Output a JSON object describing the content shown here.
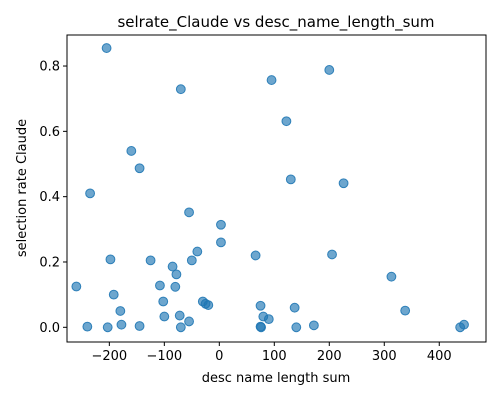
{
  "chart_data": {
    "type": "scatter",
    "title": "selrate_Claude vs desc_name_length_sum",
    "xlabel": "desc name length sum",
    "ylabel": "selection rate Claude",
    "xlim": [
      -277,
      485
    ],
    "ylim": [
      -0.045,
      0.895
    ],
    "xticks": [
      -200,
      -100,
      0,
      100,
      200,
      300,
      400
    ],
    "xtick_labels": [
      "−200",
      "−100",
      "0",
      "100",
      "200",
      "300",
      "400"
    ],
    "yticks": [
      0.0,
      0.2,
      0.4,
      0.6,
      0.8
    ],
    "ytick_labels": [
      "0.0",
      "0.2",
      "0.4",
      "0.6",
      "0.8"
    ],
    "grid": false,
    "legend": "none",
    "marker_color": "#1f77b4",
    "points": [
      {
        "x": -205,
        "y": 0.855
      },
      {
        "x": -70,
        "y": 0.729
      },
      {
        "x": 95,
        "y": 0.757
      },
      {
        "x": 200,
        "y": 0.788
      },
      {
        "x": 122,
        "y": 0.631
      },
      {
        "x": -160,
        "y": 0.54
      },
      {
        "x": -145,
        "y": 0.487
      },
      {
        "x": 130,
        "y": 0.453
      },
      {
        "x": 226,
        "y": 0.441
      },
      {
        "x": -235,
        "y": 0.41
      },
      {
        "x": -55,
        "y": 0.352
      },
      {
        "x": 3,
        "y": 0.314
      },
      {
        "x": 3,
        "y": 0.26
      },
      {
        "x": -40,
        "y": 0.232
      },
      {
        "x": 66,
        "y": 0.22
      },
      {
        "x": 205,
        "y": 0.223
      },
      {
        "x": -198,
        "y": 0.208
      },
      {
        "x": -125,
        "y": 0.205
      },
      {
        "x": -50,
        "y": 0.205
      },
      {
        "x": -85,
        "y": 0.186
      },
      {
        "x": -78,
        "y": 0.162
      },
      {
        "x": 313,
        "y": 0.155
      },
      {
        "x": -260,
        "y": 0.125
      },
      {
        "x": -108,
        "y": 0.128
      },
      {
        "x": -80,
        "y": 0.124
      },
      {
        "x": -192,
        "y": 0.1
      },
      {
        "x": -102,
        "y": 0.079
      },
      {
        "x": -30,
        "y": 0.079
      },
      {
        "x": -20,
        "y": 0.068
      },
      {
        "x": -25,
        "y": 0.072
      },
      {
        "x": 75,
        "y": 0.066
      },
      {
        "x": 137,
        "y": 0.06
      },
      {
        "x": 338,
        "y": 0.051
      },
      {
        "x": -180,
        "y": 0.05
      },
      {
        "x": -100,
        "y": 0.033
      },
      {
        "x": -72,
        "y": 0.036
      },
      {
        "x": 80,
        "y": 0.033
      },
      {
        "x": 90,
        "y": 0.025
      },
      {
        "x": -55,
        "y": 0.018
      },
      {
        "x": -178,
        "y": 0.008
      },
      {
        "x": 172,
        "y": 0.006
      },
      {
        "x": 445,
        "y": 0.008
      },
      {
        "x": -240,
        "y": 0.002
      },
      {
        "x": -203,
        "y": 0.0
      },
      {
        "x": -145,
        "y": 0.004
      },
      {
        "x": -70,
        "y": 0.0
      },
      {
        "x": 75,
        "y": 0.002
      },
      {
        "x": 76,
        "y": 0.0
      },
      {
        "x": 140,
        "y": 0.0
      },
      {
        "x": 438,
        "y": 0.0
      }
    ]
  }
}
